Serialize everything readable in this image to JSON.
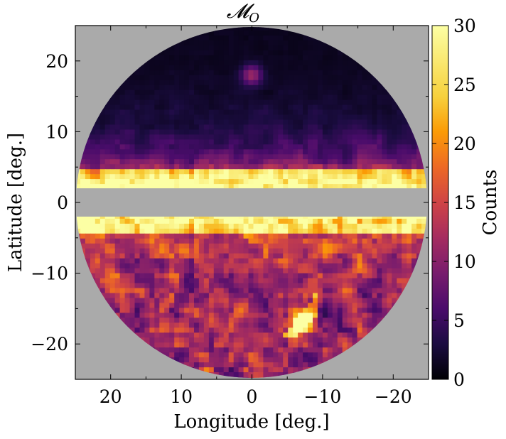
{
  "chart_data": {
    "type": "heatmap",
    "title": "𝓜",
    "title_subscript": "O",
    "xlabel": "Longitude [deg.]",
    "ylabel": "Latitude [deg.]",
    "xlim": [
      25,
      -25
    ],
    "ylim": [
      -25,
      25
    ],
    "x_ticks": [
      20,
      10,
      0,
      -10,
      -20
    ],
    "x_tick_labels": [
      "20",
      "10",
      "0",
      "−10",
      "−20"
    ],
    "y_ticks": [
      20,
      10,
      0,
      -10,
      -20
    ],
    "y_tick_labels": [
      "20",
      "10",
      "0",
      "−10",
      "−20"
    ],
    "colorbar": {
      "label": "Counts",
      "range": [
        0,
        30
      ],
      "ticks": [
        0,
        5,
        10,
        15,
        20,
        25,
        30
      ],
      "tick_labels": [
        "0",
        "5",
        "10",
        "15",
        "20",
        "25",
        "30"
      ],
      "colormap": "inferno"
    },
    "footprint": {
      "shape": "circle",
      "center": [
        0,
        0
      ],
      "radius_deg": 24.5
    },
    "masked_band": {
      "lat_min": -2,
      "lat_max": 2,
      "color": "#aaaaaa"
    },
    "background_color": "#aaaaaa",
    "grid": false,
    "features": [
      {
        "description": "bright band just above masked plane",
        "lat": [
          2,
          4
        ],
        "counts": 30
      },
      {
        "description": "bright band just below masked plane",
        "lat": [
          -4,
          -2
        ],
        "counts": 30
      },
      {
        "description": "hot spot",
        "lon": -7,
        "lat": -17,
        "counts": 30
      },
      {
        "description": "spot near top",
        "lon": 0,
        "lat": 18,
        "counts": 10
      }
    ]
  }
}
